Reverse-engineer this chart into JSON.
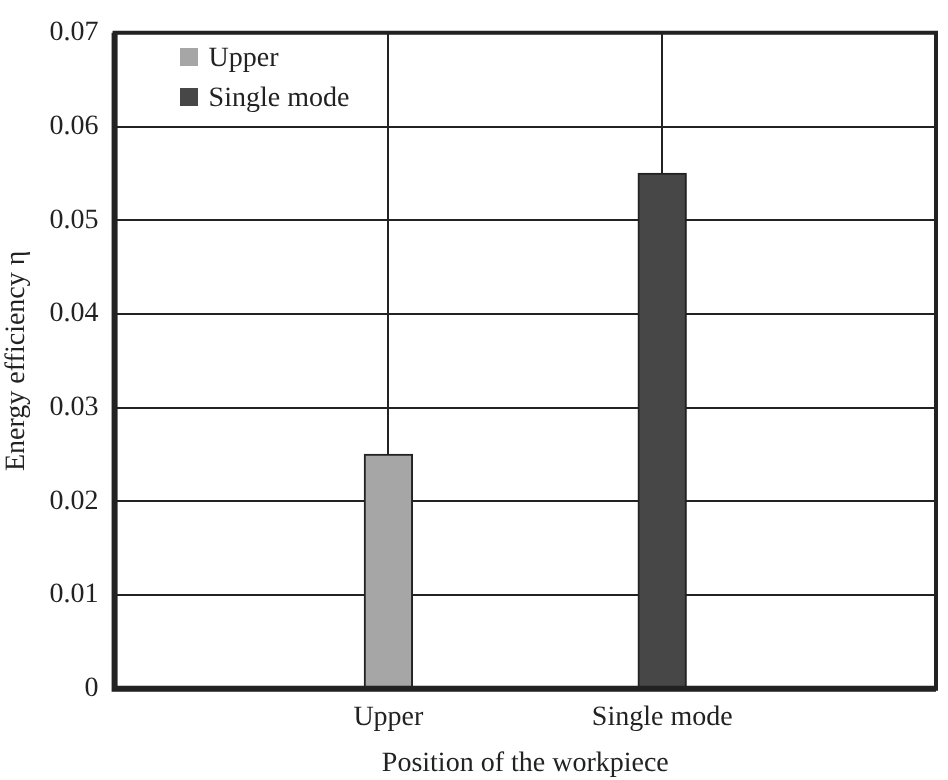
{
  "chart_data": {
    "type": "bar",
    "xlabel": "Position of the workpiece",
    "ylabel": "Energy efficiency η",
    "categories": [
      "Upper",
      "Single mode"
    ],
    "series": [
      {
        "name": "Upper",
        "color": "#a6a6a6",
        "values": [
          0.025,
          null
        ]
      },
      {
        "name": "Single mode",
        "color": "#474747",
        "values": [
          null,
          0.055
        ]
      }
    ],
    "ylim": [
      0,
      0.07
    ],
    "yticks": [
      0,
      0.01,
      0.02,
      0.03,
      0.04,
      0.05,
      0.06,
      0.07
    ],
    "grid": true,
    "legend": "top left"
  }
}
